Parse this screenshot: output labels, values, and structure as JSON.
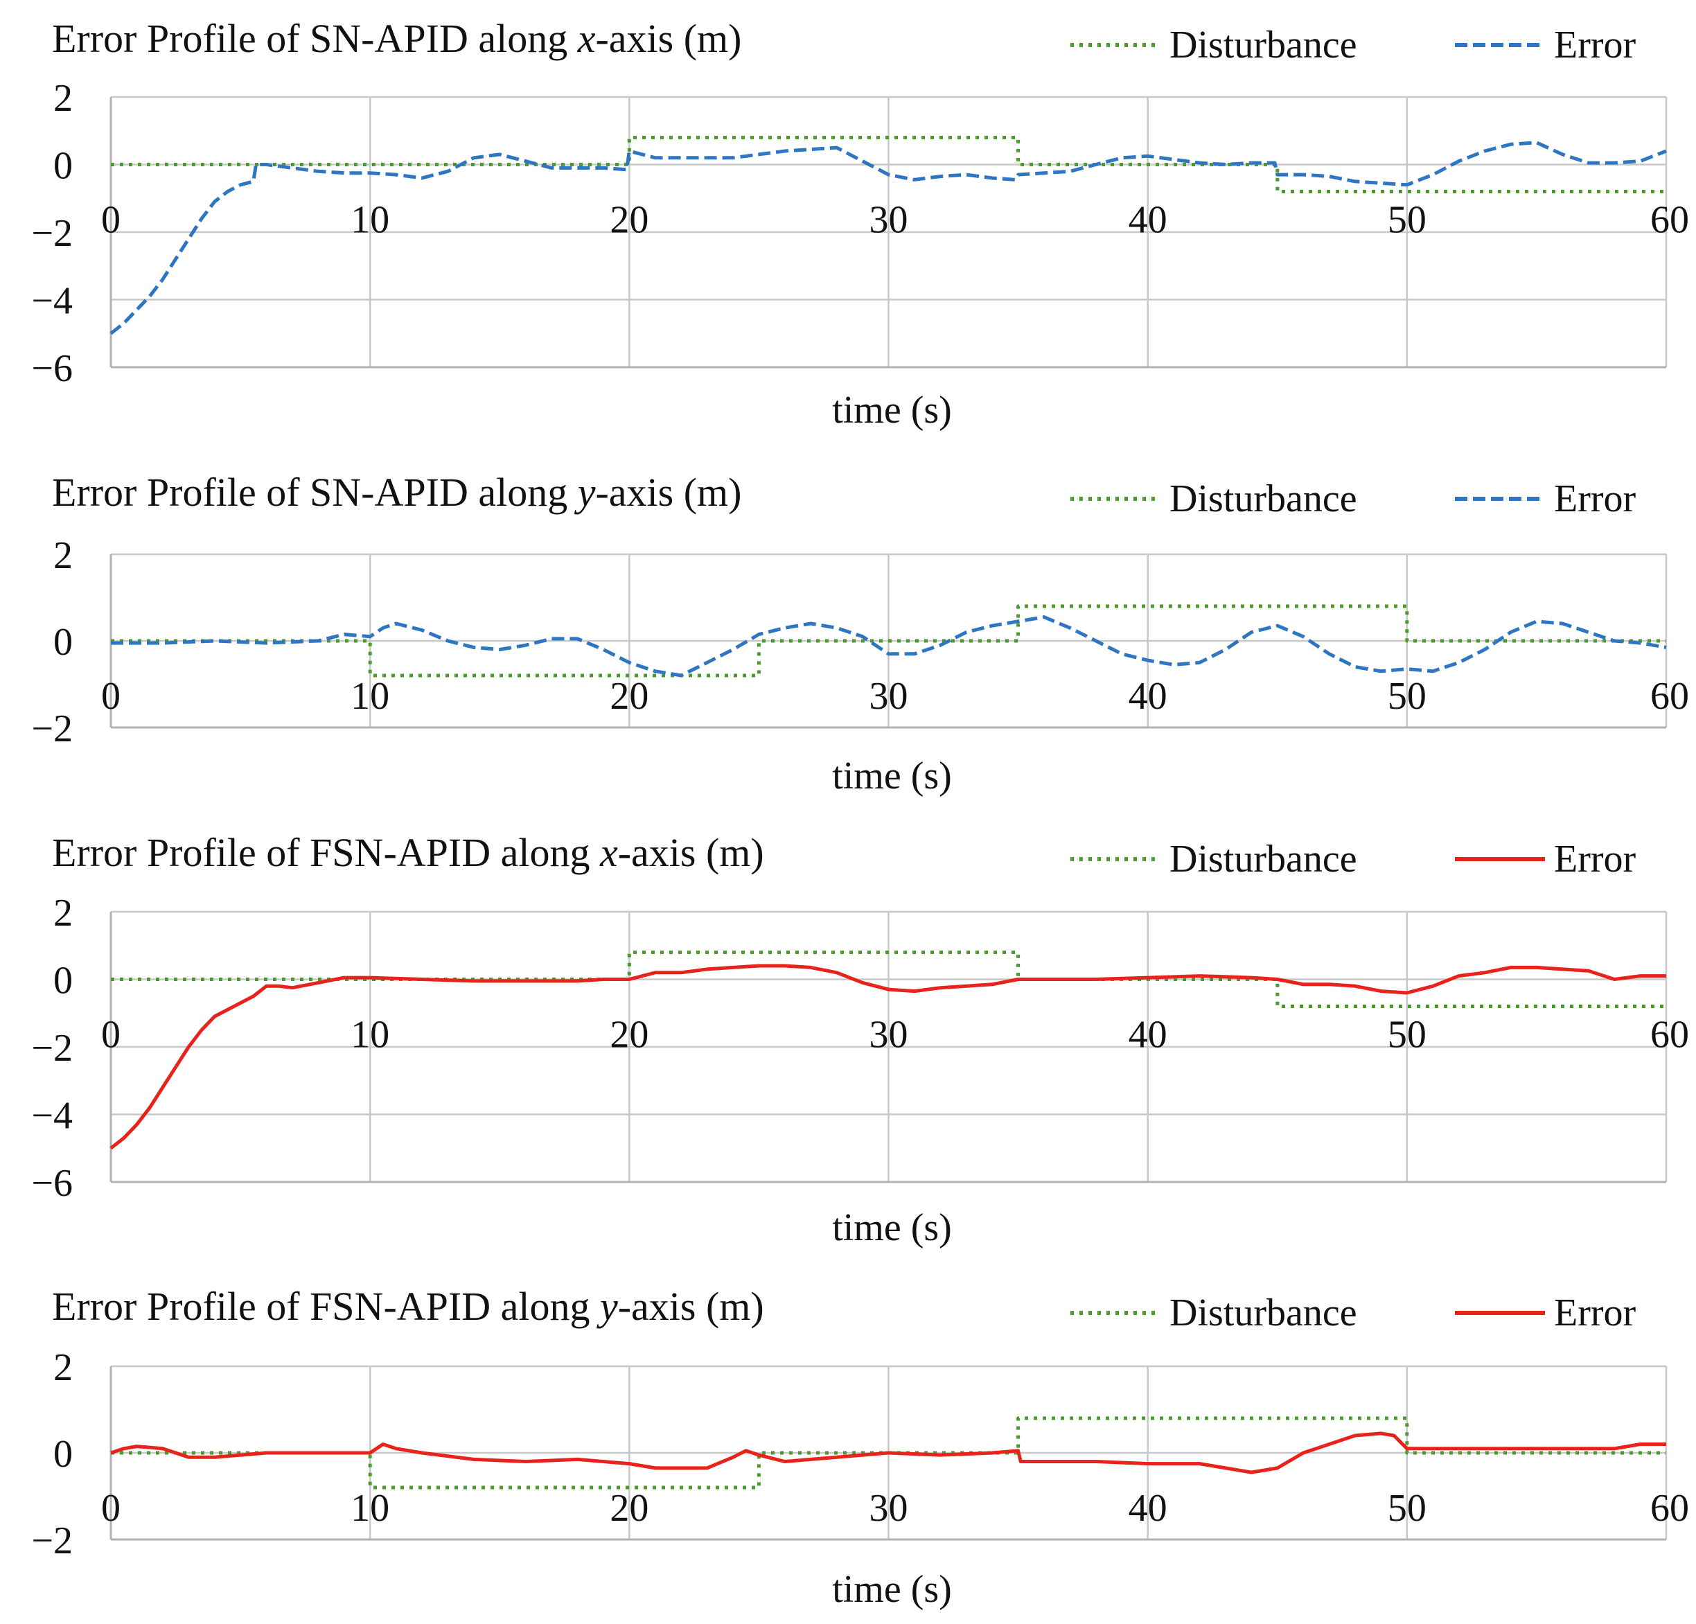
{
  "chart_data": [
    {
      "type": "line",
      "title_prefix": "Error Profile of SN-APID along ",
      "title_var": "x",
      "title_suffix": "-axis (m)",
      "xlabel": "time (s)",
      "ylabel": "",
      "xlim": [
        0,
        60
      ],
      "ylim": [
        -6,
        2
      ],
      "xticks": [
        0,
        10,
        20,
        30,
        40,
        50,
        60
      ],
      "yticks": [
        2,
        0,
        -2,
        -4,
        -6
      ],
      "xtick_labels": [
        "0",
        "10",
        "20",
        "30",
        "40",
        "50",
        "60"
      ],
      "ytick_labels": [
        "2",
        "0",
        "−2",
        "−4",
        "−6"
      ],
      "grid": true,
      "legend_position": "top-right",
      "series": [
        {
          "name": "Disturbance",
          "style": "dotted",
          "color": "#4a9a2e",
          "x": [
            0,
            20,
            20,
            35,
            35,
            45,
            45,
            60
          ],
          "y": [
            0,
            0,
            0.8,
            0.8,
            0,
            0,
            -0.8,
            -0.8
          ]
        },
        {
          "name": "Error",
          "style": "dashed",
          "color": "#2e75c2",
          "x": [
            0,
            0.5,
            1,
            1.5,
            2,
            2.5,
            3,
            3.5,
            4,
            4.5,
            5,
            5.5,
            5.6,
            6,
            7,
            8,
            9,
            10,
            11,
            12,
            13,
            14,
            15,
            16,
            17,
            18,
            19,
            19.9,
            20,
            21,
            22,
            23,
            24,
            25,
            26,
            27,
            28,
            29,
            30,
            31,
            32,
            33,
            34,
            34.9,
            35,
            36,
            37,
            38,
            39,
            40,
            41,
            42,
            43,
            44,
            44.9,
            45,
            46,
            47,
            48,
            49,
            50,
            51,
            52,
            53,
            54,
            55,
            56,
            57,
            58,
            59,
            60
          ],
          "y": [
            -5,
            -4.7,
            -4.3,
            -3.9,
            -3.4,
            -2.8,
            -2.2,
            -1.6,
            -1.1,
            -0.8,
            -0.6,
            -0.5,
            0,
            0,
            -0.1,
            -0.2,
            -0.25,
            -0.25,
            -0.3,
            -0.4,
            -0.2,
            0.2,
            0.3,
            0.1,
            -0.1,
            -0.1,
            -0.1,
            -0.15,
            0.4,
            0.2,
            0.2,
            0.2,
            0.2,
            0.3,
            0.4,
            0.45,
            0.5,
            0.1,
            -0.3,
            -0.45,
            -0.35,
            -0.3,
            -0.4,
            -0.45,
            -0.3,
            -0.25,
            -0.2,
            0,
            0.2,
            0.25,
            0.15,
            0.05,
            0,
            0.05,
            0.05,
            -0.3,
            -0.3,
            -0.35,
            -0.5,
            -0.55,
            -0.6,
            -0.3,
            0.1,
            0.4,
            0.6,
            0.65,
            0.3,
            0.05,
            0.05,
            0.1,
            0.4
          ]
        }
      ]
    },
    {
      "type": "line",
      "title_prefix": "Error Profile of SN-APID along ",
      "title_var": "y",
      "title_suffix": "-axis (m)",
      "xlabel": "time (s)",
      "ylabel": "",
      "xlim": [
        0,
        60
      ],
      "ylim": [
        -2,
        2
      ],
      "xticks": [
        0,
        10,
        20,
        30,
        40,
        50,
        60
      ],
      "yticks": [
        2,
        0,
        -2
      ],
      "xtick_labels": [
        "0",
        "10",
        "20",
        "30",
        "40",
        "50",
        "60"
      ],
      "ytick_labels": [
        "2",
        "0",
        "−2"
      ],
      "grid": true,
      "legend_position": "top-right",
      "series": [
        {
          "name": "Disturbance",
          "style": "dotted",
          "color": "#4a9a2e",
          "x": [
            0,
            10,
            10,
            25,
            25,
            35,
            35,
            50,
            50,
            60
          ],
          "y": [
            0,
            0,
            -0.8,
            -0.8,
            0,
            0,
            0.8,
            0.8,
            0,
            0
          ]
        },
        {
          "name": "Error",
          "style": "dashed",
          "color": "#2e75c2",
          "x": [
            0,
            2,
            4,
            6,
            8,
            9,
            10,
            10.5,
            11,
            12,
            13,
            14,
            15,
            16,
            17,
            18,
            19,
            20,
            21,
            22,
            23,
            24,
            25,
            26,
            27,
            28,
            29,
            30,
            31,
            32,
            33,
            34,
            35,
            36,
            37,
            38,
            39,
            40,
            41,
            42,
            43,
            44,
            45,
            46,
            47,
            48,
            49,
            50,
            51,
            52,
            53,
            54,
            55,
            56,
            57,
            58,
            59,
            60
          ],
          "y": [
            -0.05,
            -0.05,
            0,
            -0.05,
            0,
            0.15,
            0.1,
            0.3,
            0.4,
            0.25,
            0,
            -0.15,
            -0.2,
            -0.1,
            0.05,
            0.05,
            -0.2,
            -0.5,
            -0.7,
            -0.8,
            -0.5,
            -0.2,
            0.15,
            0.3,
            0.4,
            0.3,
            0.1,
            -0.3,
            -0.3,
            -0.1,
            0.2,
            0.35,
            0.45,
            0.55,
            0.3,
            0,
            -0.3,
            -0.45,
            -0.55,
            -0.5,
            -0.2,
            0.2,
            0.35,
            0.1,
            -0.3,
            -0.6,
            -0.7,
            -0.65,
            -0.7,
            -0.5,
            -0.2,
            0.2,
            0.45,
            0.4,
            0.2,
            0,
            -0.05,
            -0.15
          ]
        }
      ]
    },
    {
      "type": "line",
      "title_prefix": "Error Profile of FSN-APID along ",
      "title_var": "x",
      "title_suffix": "-axis (m)",
      "xlabel": "time (s)",
      "ylabel": "",
      "xlim": [
        0,
        60
      ],
      "ylim": [
        -6,
        2
      ],
      "xticks": [
        0,
        10,
        20,
        30,
        40,
        50,
        60
      ],
      "yticks": [
        2,
        0,
        -2,
        -4,
        -6
      ],
      "xtick_labels": [
        "0",
        "10",
        "20",
        "30",
        "40",
        "50",
        "60"
      ],
      "ytick_labels": [
        "2",
        "0",
        "−2",
        "−4",
        "−6"
      ],
      "grid": true,
      "legend_position": "top-right",
      "series": [
        {
          "name": "Disturbance",
          "style": "dotted",
          "color": "#4a9a2e",
          "x": [
            0,
            20,
            20,
            35,
            35,
            45,
            45,
            60
          ],
          "y": [
            0,
            0,
            0.8,
            0.8,
            0,
            0,
            -0.8,
            -0.8
          ]
        },
        {
          "name": "Error",
          "style": "solid",
          "color": "#e8231c",
          "x": [
            0,
            0.5,
            1,
            1.5,
            2,
            2.5,
            3,
            3.5,
            4,
            4.5,
            5,
            5.5,
            6,
            6.5,
            7,
            8,
            9,
            10,
            12,
            14,
            16,
            18,
            19,
            20,
            21,
            22,
            23,
            24,
            25,
            26,
            27,
            28,
            29,
            30,
            31,
            32,
            33,
            34,
            35,
            36,
            38,
            40,
            42,
            44,
            45,
            46,
            47,
            48,
            49,
            50,
            51,
            52,
            53,
            54,
            55,
            56,
            57,
            58,
            59,
            60
          ],
          "y": [
            -5,
            -4.7,
            -4.3,
            -3.8,
            -3.2,
            -2.6,
            -2,
            -1.5,
            -1.1,
            -0.9,
            -0.7,
            -0.5,
            -0.2,
            -0.2,
            -0.25,
            -0.1,
            0.05,
            0.05,
            0,
            -0.05,
            -0.05,
            -0.05,
            0,
            0,
            0.2,
            0.2,
            0.3,
            0.35,
            0.4,
            0.4,
            0.35,
            0.2,
            -0.1,
            -0.3,
            -0.35,
            -0.25,
            -0.2,
            -0.15,
            0,
            0,
            0,
            0.05,
            0.1,
            0.05,
            0,
            -0.15,
            -0.15,
            -0.2,
            -0.35,
            -0.4,
            -0.2,
            0.1,
            0.2,
            0.35,
            0.35,
            0.3,
            0.25,
            0,
            0.1,
            0.1
          ]
        }
      ]
    },
    {
      "type": "line",
      "title_prefix": "Error Profile of FSN-APID along ",
      "title_var": "y",
      "title_suffix": "-axis (m)",
      "xlabel": "time (s)",
      "ylabel": "",
      "xlim": [
        0,
        60
      ],
      "ylim": [
        -2,
        2
      ],
      "xticks": [
        0,
        10,
        20,
        30,
        40,
        50,
        60
      ],
      "yticks": [
        2,
        0,
        -2
      ],
      "xtick_labels": [
        "0",
        "10",
        "20",
        "30",
        "40",
        "50",
        "60"
      ],
      "ytick_labels": [
        "2",
        "0",
        "−2"
      ],
      "grid": true,
      "legend_position": "top-right",
      "series": [
        {
          "name": "Disturbance",
          "style": "dotted",
          "color": "#4a9a2e",
          "x": [
            0,
            10,
            10,
            25,
            25,
            35,
            35,
            50,
            50,
            60
          ],
          "y": [
            0,
            0,
            -0.8,
            -0.8,
            0,
            0,
            0.8,
            0.8,
            0,
            0
          ]
        },
        {
          "name": "Error",
          "style": "solid",
          "color": "#e8231c",
          "x": [
            0,
            0.5,
            1,
            2,
            3,
            4,
            5,
            6,
            8,
            10,
            10.5,
            11,
            12,
            14,
            16,
            18,
            20,
            21,
            22,
            23,
            24,
            24.5,
            25,
            26,
            28,
            30,
            32,
            34,
            35,
            35.1,
            36,
            38,
            40,
            42,
            44,
            45,
            46,
            47,
            48,
            49,
            49.5,
            50,
            52,
            54,
            56,
            58,
            59,
            60
          ],
          "y": [
            0,
            0.1,
            0.15,
            0.1,
            -0.1,
            -0.1,
            -0.05,
            0,
            0,
            0,
            0.2,
            0.1,
            0,
            -0.15,
            -0.2,
            -0.15,
            -0.25,
            -0.35,
            -0.35,
            -0.35,
            -0.1,
            0.05,
            -0.05,
            -0.2,
            -0.1,
            0,
            -0.05,
            0,
            0.05,
            -0.2,
            -0.2,
            -0.2,
            -0.25,
            -0.25,
            -0.45,
            -0.35,
            0,
            0.2,
            0.4,
            0.45,
            0.4,
            0.1,
            0.1,
            0.1,
            0.1,
            0.1,
            0.2,
            0.2
          ]
        }
      ]
    }
  ]
}
